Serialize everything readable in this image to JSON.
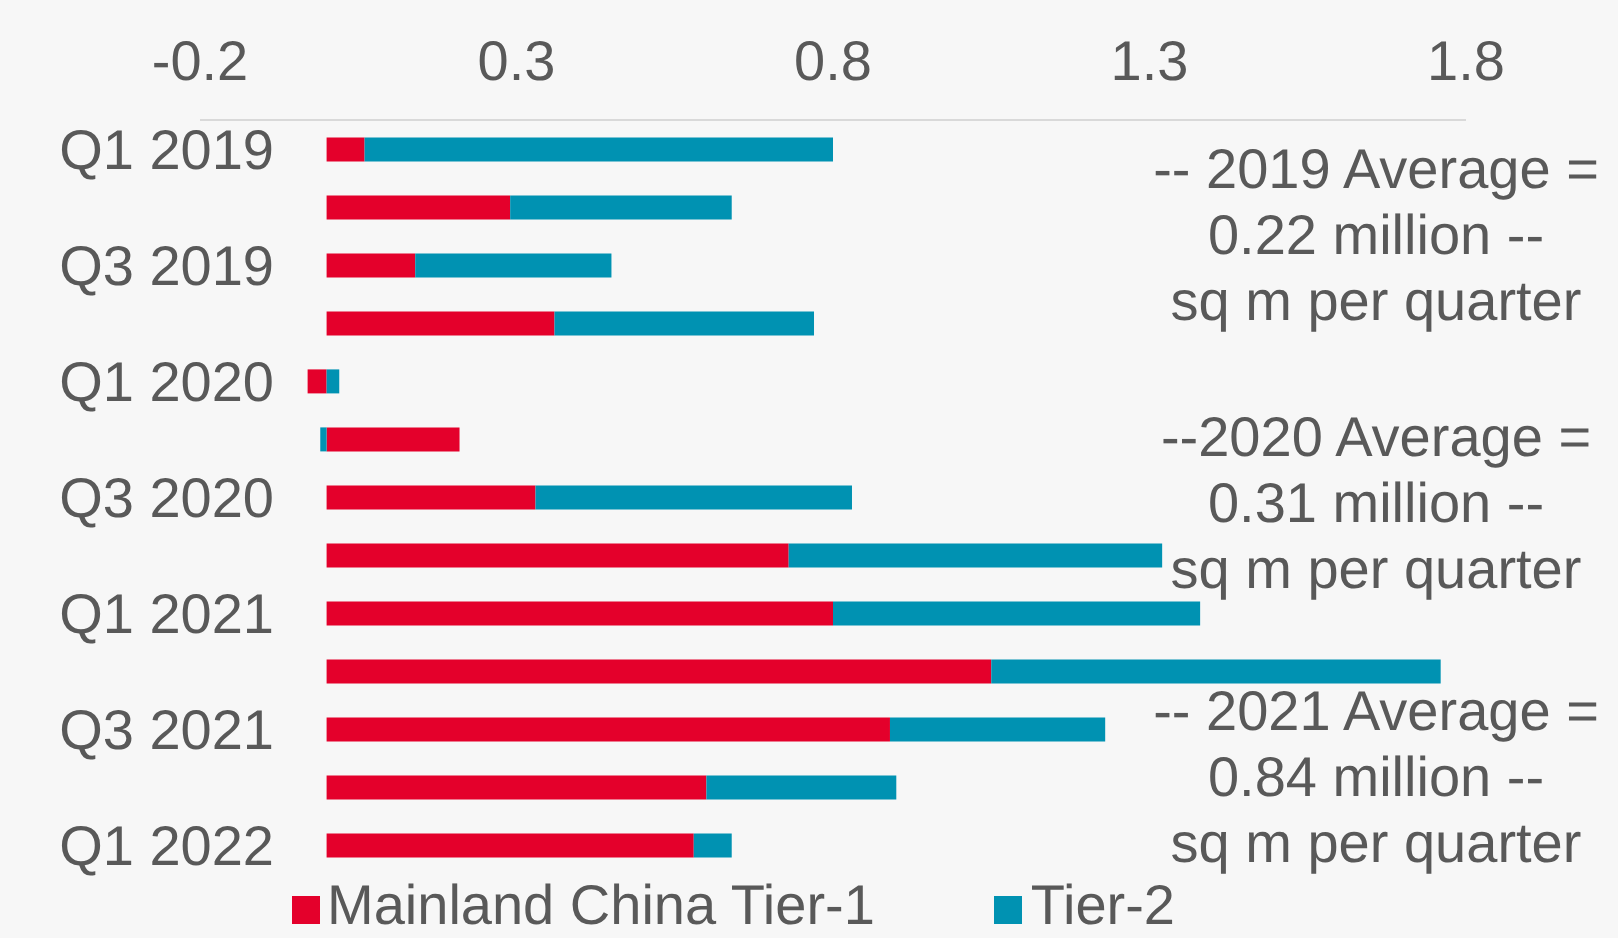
{
  "chart_data": {
    "type": "bar",
    "orientation": "horizontal",
    "stacked": true,
    "categories": [
      "Q1 2019",
      null,
      "Q3 2019",
      null,
      "Q1 2020",
      null,
      "Q3 2020",
      null,
      "Q1 2021",
      null,
      "Q3 2021",
      null,
      "Q1 2022"
    ],
    "series": [
      {
        "name": "Mainland China Tier-1",
        "color": "#e4002b",
        "values": [
          0.06,
          0.29,
          0.14,
          0.36,
          -0.03,
          0.21,
          0.33,
          0.73,
          0.8,
          1.05,
          0.89,
          0.6,
          0.58
        ]
      },
      {
        "name": "Tier-2",
        "color": "#0092b2",
        "values": [
          0.74,
          0.35,
          0.31,
          0.41,
          0.02,
          -0.01,
          0.5,
          0.59,
          0.58,
          0.71,
          0.34,
          0.3,
          0.06
        ]
      }
    ],
    "xlim": [
      -0.2,
      1.8
    ],
    "xticks": [
      -0.2,
      0.3,
      0.8,
      1.3,
      1.8
    ],
    "legend": "bottom",
    "annotations": [
      "-- 2019 Average =\n0.22 million --\nsq m per quarter",
      "--2020 Average =\n0.31 million --\nsq m per quarter",
      "-- 2021 Average =\n0.84 million --\nsq m per quarter"
    ]
  }
}
